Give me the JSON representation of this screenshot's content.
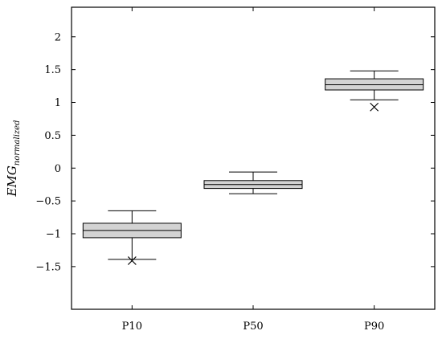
{
  "chart_data": {
    "type": "box",
    "ylabel": {
      "main": "EMG",
      "subscript": "normalized"
    },
    "ylim": [
      -2.15,
      2.45
    ],
    "yticks": [
      -1.5,
      -1,
      -0.5,
      0,
      0.5,
      1,
      1.5,
      2
    ],
    "ytick_labels": [
      "−1.5",
      "−1",
      "−0.5",
      "0",
      "0.5",
      "1",
      "1.5",
      "2"
    ],
    "categories": [
      "P10",
      "P50",
      "P90"
    ],
    "boxes": [
      {
        "label": "P10",
        "whisker_low": -1.39,
        "q1": -1.06,
        "median": -0.95,
        "q3": -0.84,
        "whisker_high": -0.65,
        "outliers": [
          -1.41
        ]
      },
      {
        "label": "P50",
        "whisker_low": -0.39,
        "q1": -0.31,
        "median": -0.25,
        "q3": -0.19,
        "whisker_high": -0.06,
        "outliers": []
      },
      {
        "label": "P90",
        "whisker_low": 1.04,
        "q1": 1.19,
        "median": 1.27,
        "q3": 1.36,
        "whisker_high": 1.48,
        "outliers": [
          0.93
        ]
      }
    ],
    "box_fill": "#d3d3d3",
    "grid": false
  }
}
